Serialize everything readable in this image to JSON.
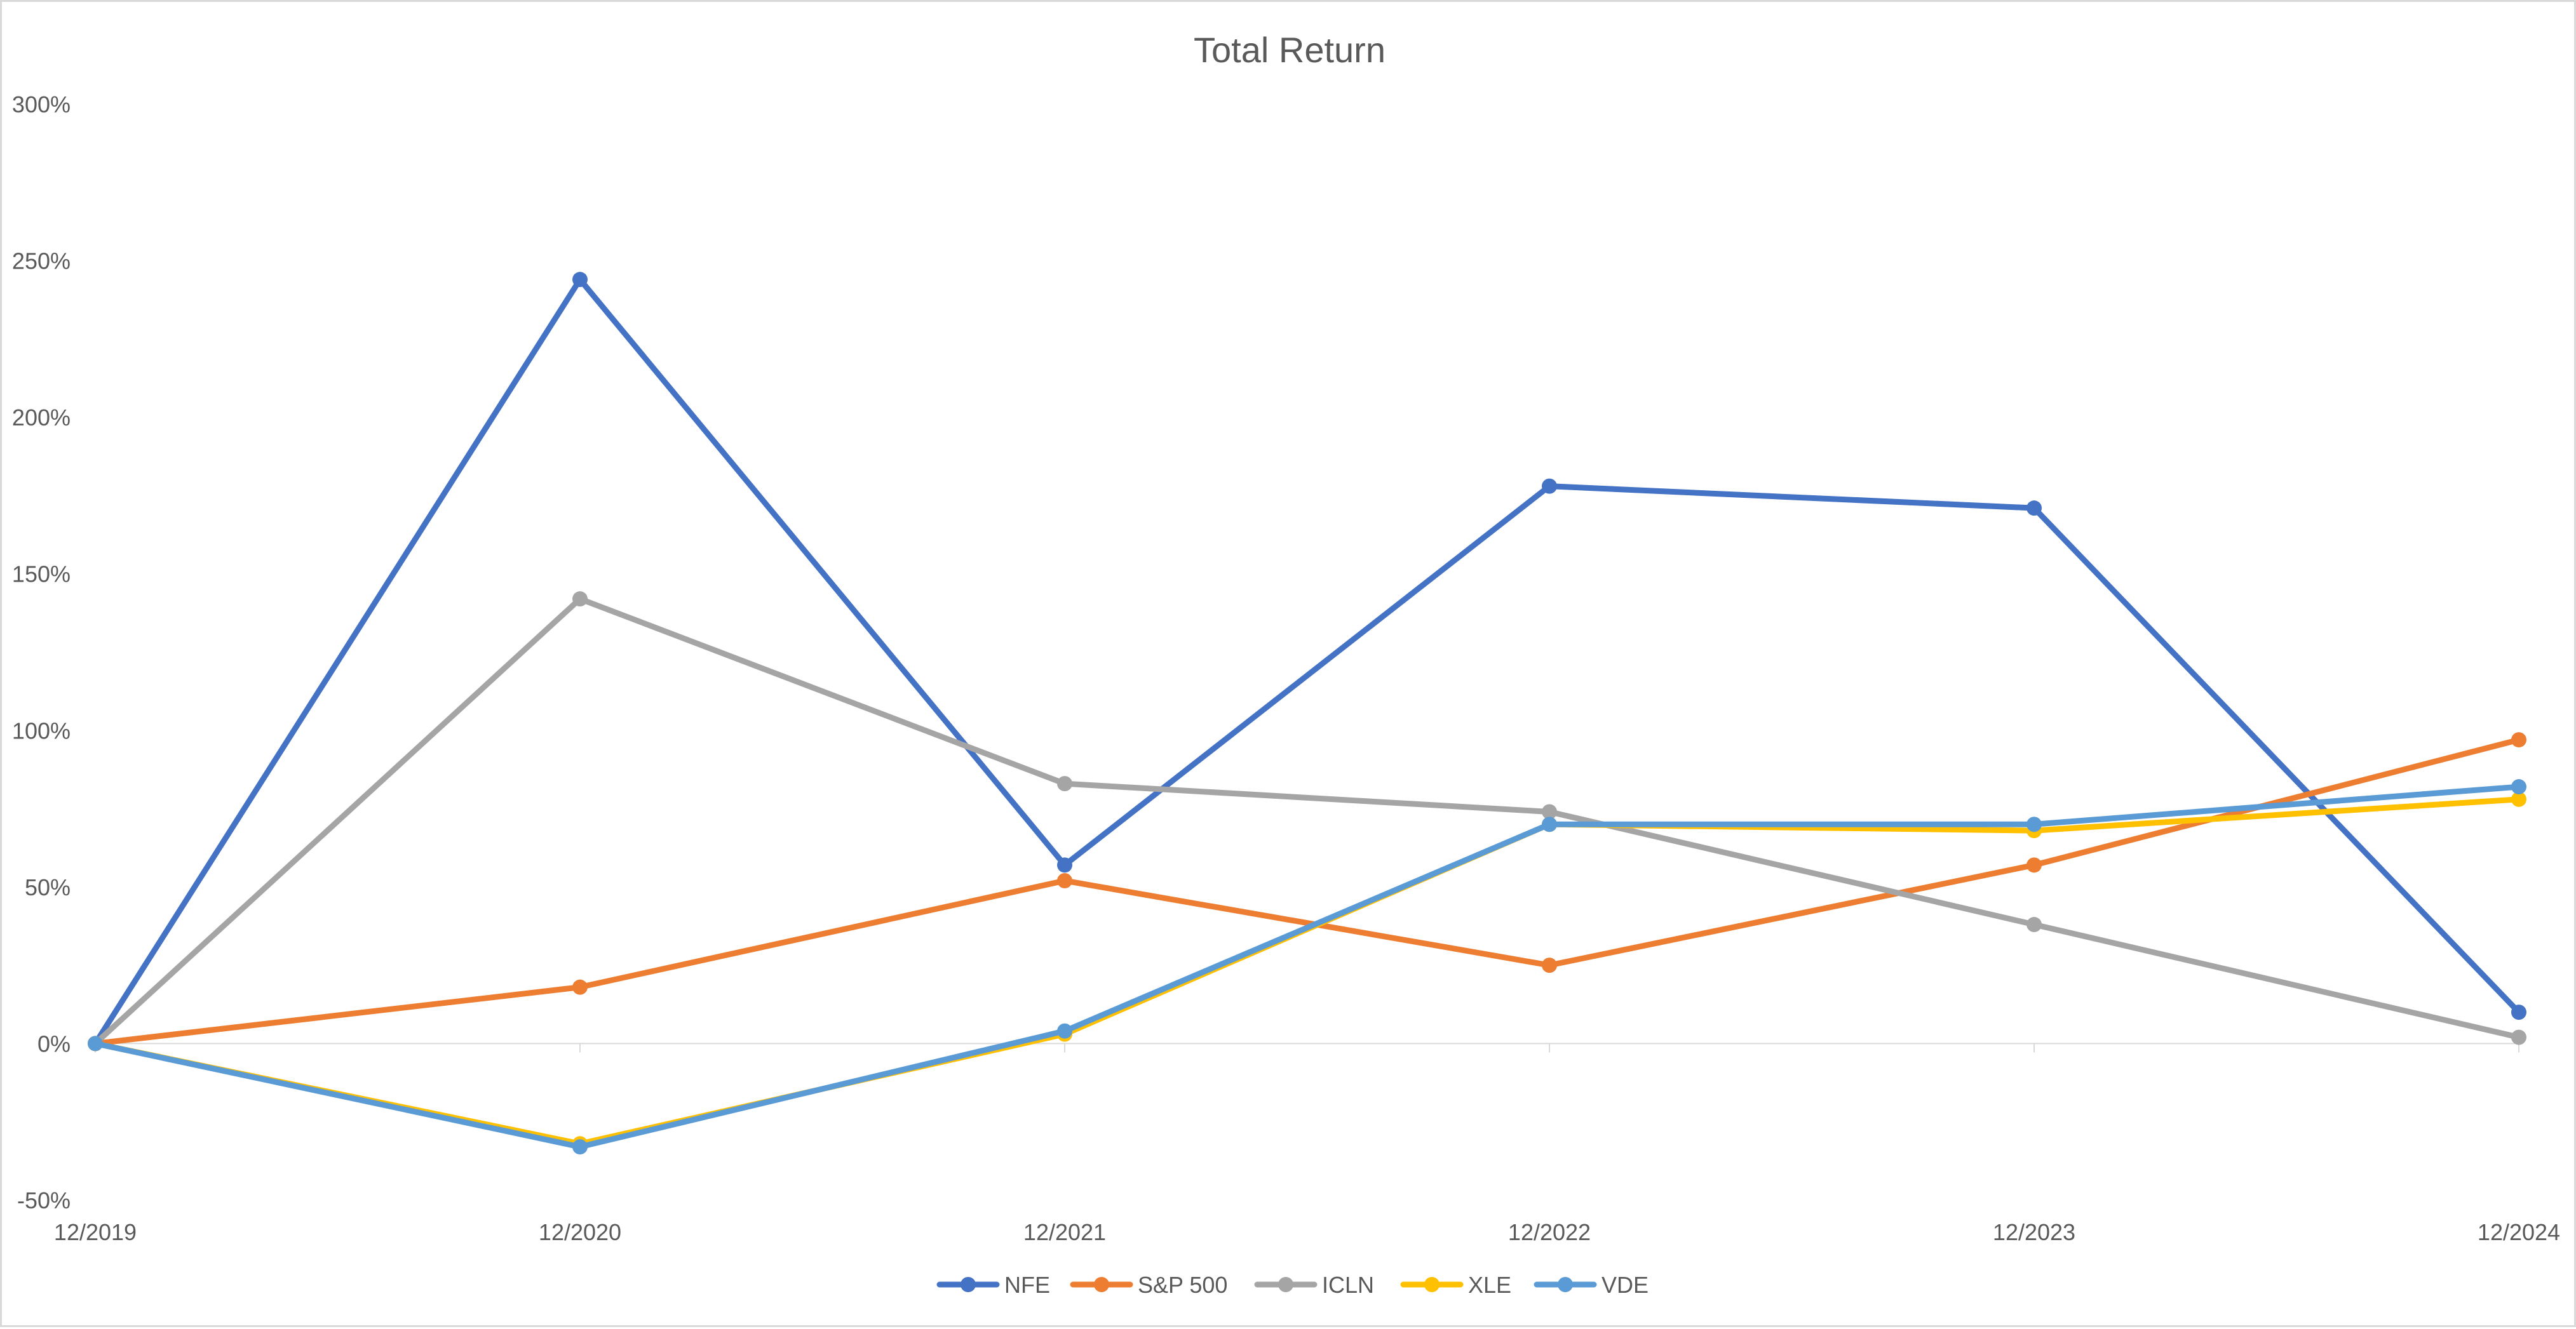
{
  "chart_data": {
    "type": "line",
    "title": "Total Return",
    "xlabel": "",
    "ylabel": "",
    "categories": [
      "12/2019",
      "12/2020",
      "12/2021",
      "12/2022",
      "12/2023",
      "12/2024"
    ],
    "ylim": [
      -50,
      300
    ],
    "y_ticks": [
      -50,
      0,
      50,
      100,
      150,
      200,
      250,
      300
    ],
    "y_tick_labels": [
      "-50%",
      "0%",
      "50%",
      "100%",
      "150%",
      "200%",
      "250%",
      "300%"
    ],
    "grid": false,
    "legend_position": "bottom",
    "series": [
      {
        "name": "NFE",
        "color": "#4472C4",
        "values": [
          0,
          244,
          57,
          178,
          171,
          10
        ]
      },
      {
        "name": "S&P 500",
        "color": "#ED7D31",
        "values": [
          0,
          18,
          52,
          25,
          57,
          97
        ]
      },
      {
        "name": "ICLN",
        "color": "#A5A5A5",
        "values": [
          0,
          142,
          83,
          74,
          38,
          2
        ]
      },
      {
        "name": "XLE",
        "color": "#FFC000",
        "values": [
          0,
          -32,
          3,
          70,
          68,
          78
        ]
      },
      {
        "name": "VDE",
        "color": "#5B9BD5",
        "values": [
          0,
          -33,
          4,
          70,
          70,
          82
        ]
      }
    ]
  }
}
